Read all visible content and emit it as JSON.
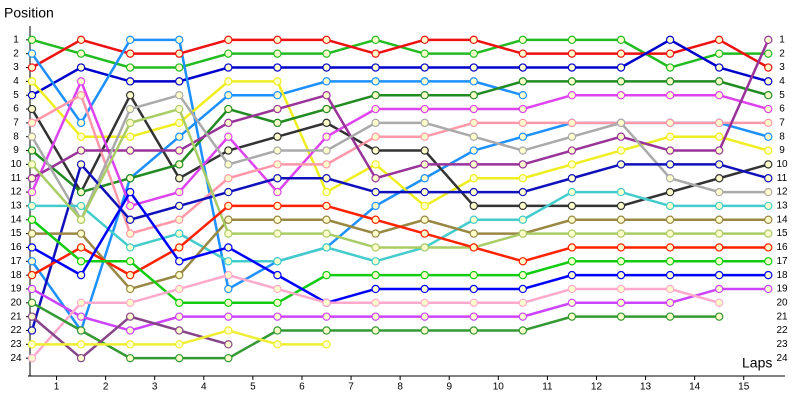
{
  "chart_data": {
    "type": "line",
    "y_label": "Position",
    "x_label": "Laps",
    "x": [
      0,
      1,
      2,
      3,
      4,
      5,
      6,
      7,
      8,
      9,
      10,
      11,
      12,
      13,
      14,
      15
    ],
    "xlim": [
      0,
      15.3
    ],
    "xticks": [
      {
        "value": 0.5,
        "label": "1"
      },
      {
        "value": 1.5,
        "label": "2"
      },
      {
        "value": 2.5,
        "label": "3"
      },
      {
        "value": 3.5,
        "label": "4"
      },
      {
        "value": 4.5,
        "label": "5"
      },
      {
        "value": 5.5,
        "label": "6"
      },
      {
        "value": 6.5,
        "label": "7"
      },
      {
        "value": 7.5,
        "label": "8"
      },
      {
        "value": 8.5,
        "label": "9"
      },
      {
        "value": 9.5,
        "label": "10"
      },
      {
        "value": 10.5,
        "label": "11"
      },
      {
        "value": 11.5,
        "label": "12"
      },
      {
        "value": 12.5,
        "label": "13"
      },
      {
        "value": 13.5,
        "label": "14"
      },
      {
        "value": 14.5,
        "label": "15"
      }
    ],
    "ylim": [
      25,
      0
    ],
    "yticks": [
      1,
      2,
      3,
      4,
      5,
      6,
      7,
      8,
      9,
      10,
      11,
      12,
      13,
      14,
      15,
      16,
      17,
      18,
      19,
      20,
      21,
      22,
      23,
      24
    ],
    "grid": false,
    "series": [
      {
        "color": "#22bb22",
        "values": [
          1,
          2,
          3,
          3,
          2,
          2,
          2,
          1,
          2,
          2,
          1,
          1,
          1,
          3,
          2,
          2
        ]
      },
      {
        "color": "#ee1111",
        "values": [
          3,
          1,
          2,
          2,
          1,
          1,
          1,
          2,
          1,
          1,
          2,
          2,
          2,
          2,
          1,
          3
        ]
      },
      {
        "color": "#0000cc",
        "values": [
          5,
          3,
          4,
          4,
          3,
          3,
          3,
          3,
          3,
          3,
          3,
          3,
          3,
          1,
          3,
          4
        ]
      },
      {
        "color": "#1e90ff",
        "values": [
          2,
          7,
          1,
          1,
          19,
          17,
          16,
          13,
          11,
          9,
          8,
          7,
          7,
          7,
          7,
          8
        ]
      },
      {
        "color": "#1e90ff",
        "values": [
          17,
          22,
          11,
          8,
          5,
          5,
          4,
          4,
          4,
          4,
          5,
          null,
          null,
          null,
          null,
          null
        ]
      },
      {
        "color": "#eeee22",
        "values": [
          4,
          8,
          8,
          7,
          4,
          4,
          12,
          10,
          13,
          11,
          11,
          10,
          9,
          8,
          8,
          9
        ]
      },
      {
        "color": "#333333",
        "values": [
          6,
          12,
          5,
          11,
          9,
          8,
          7,
          9,
          9,
          13,
          13,
          13,
          13,
          12,
          11,
          10
        ]
      },
      {
        "color": "#228b22",
        "values": [
          9,
          12,
          11,
          10,
          6,
          7,
          6,
          5,
          5,
          5,
          4,
          4,
          4,
          4,
          4,
          5
        ]
      },
      {
        "color": "#dd44ee",
        "values": [
          12,
          4,
          13,
          12,
          8,
          12,
          8,
          6,
          6,
          6,
          6,
          5,
          5,
          5,
          5,
          6
        ]
      },
      {
        "color": "#ff99aa",
        "values": [
          7,
          5,
          15,
          14,
          11,
          10,
          10,
          8,
          8,
          7,
          7,
          7,
          7,
          7,
          7,
          7
        ]
      },
      {
        "color": "#993399",
        "values": [
          11,
          9,
          9,
          9,
          7,
          6,
          5,
          11,
          10,
          10,
          10,
          9,
          8,
          9,
          9,
          1
        ]
      },
      {
        "color": "#aaaaaa",
        "values": [
          8,
          14,
          6,
          5,
          10,
          9,
          9,
          7,
          7,
          8,
          9,
          8,
          7,
          11,
          12,
          12
        ]
      },
      {
        "color": "#1111bb",
        "values": [
          22,
          10,
          14,
          13,
          12,
          11,
          11,
          12,
          12,
          12,
          12,
          11,
          10,
          10,
          10,
          11
        ]
      },
      {
        "color": "#44cccc",
        "values": [
          13,
          13,
          16,
          15,
          17,
          17,
          16,
          17,
          16,
          14,
          14,
          12,
          12,
          13,
          13,
          13
        ]
      },
      {
        "color": "#998844",
        "values": [
          15,
          15,
          19,
          18,
          14,
          14,
          14,
          15,
          14,
          15,
          15,
          14,
          14,
          14,
          14,
          14
        ]
      },
      {
        "color": "#aacc66",
        "values": [
          10,
          14,
          7,
          6,
          15,
          15,
          15,
          16,
          16,
          16,
          15,
          15,
          15,
          15,
          15,
          15
        ]
      },
      {
        "color": "#ff2200",
        "values": [
          18,
          16,
          18,
          16,
          13,
          13,
          13,
          14,
          15,
          16,
          17,
          16,
          16,
          16,
          16,
          16
        ]
      },
      {
        "color": "#11cc11",
        "values": [
          14,
          17,
          17,
          20,
          20,
          20,
          18,
          18,
          18,
          18,
          18,
          17,
          17,
          17,
          17,
          17
        ]
      },
      {
        "color": "#0000ff",
        "values": [
          16,
          18,
          12,
          17,
          16,
          18,
          20,
          19,
          19,
          19,
          19,
          18,
          18,
          18,
          18,
          18
        ]
      },
      {
        "color": "#cc44ff",
        "values": [
          19,
          21,
          22,
          21,
          21,
          21,
          21,
          21,
          21,
          21,
          21,
          20,
          20,
          20,
          19,
          19
        ]
      },
      {
        "color": "#ffaacc",
        "values": [
          24,
          20,
          20,
          19,
          18,
          19,
          20,
          20,
          20,
          20,
          20,
          19,
          19,
          19,
          20,
          null
        ]
      },
      {
        "color": "#339933",
        "values": [
          20,
          22,
          24,
          24,
          24,
          22,
          22,
          22,
          22,
          22,
          22,
          21,
          21,
          21,
          21,
          null
        ]
      },
      {
        "color": "#884488",
        "values": [
          21,
          24,
          21,
          22,
          23,
          null,
          null,
          null,
          null,
          null,
          null,
          null,
          null,
          null,
          null,
          null
        ]
      },
      {
        "color": "#eeee33",
        "values": [
          23,
          23,
          23,
          23,
          22,
          23,
          23,
          null,
          null,
          null,
          null,
          null,
          null,
          null,
          null,
          null
        ]
      }
    ]
  }
}
